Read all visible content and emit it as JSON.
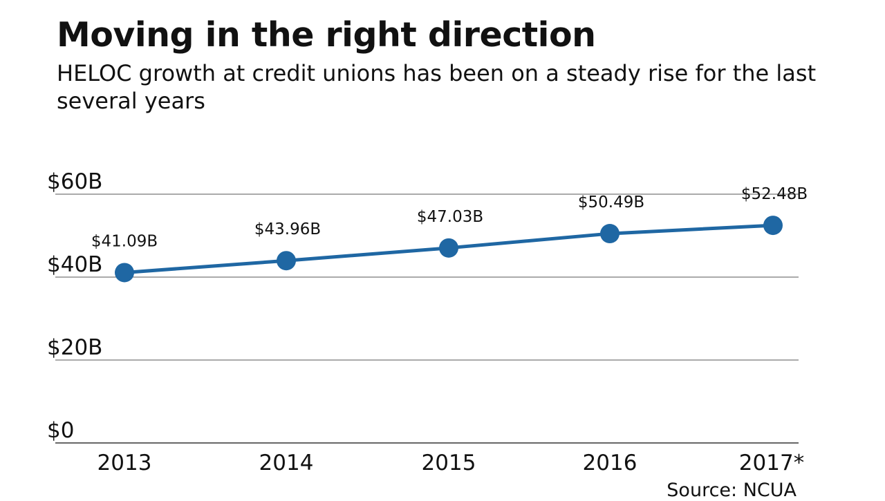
{
  "chart_data": {
    "type": "line",
    "title": "Moving in the right direction",
    "subtitle": "HELOC growth at credit unions has been on a steady rise for the last several years",
    "categories": [
      "2013",
      "2014",
      "2015",
      "2016",
      "2017*"
    ],
    "values": [
      41.09,
      43.96,
      47.03,
      50.49,
      52.48
    ],
    "data_labels": [
      "$41.09B",
      "$43.96B",
      "$47.03B",
      "$50.49B",
      "$52.48B"
    ],
    "yticks": [
      0,
      20,
      40,
      60
    ],
    "ytick_labels": [
      "$0",
      "$20B",
      "$40B",
      "$60B"
    ],
    "ylim": [
      0,
      60
    ],
    "grid": true,
    "line_color": "#1f67a3",
    "source": "Source: NCUA"
  }
}
